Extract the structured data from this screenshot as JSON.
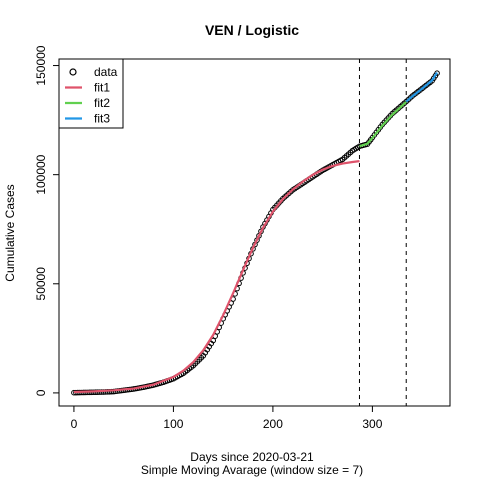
{
  "chart_data": {
    "type": "line",
    "title": "VEN / Logistic",
    "xlabel": "Days since 2020-03-21",
    "xlabel_sub": "Simple Moving Avarage (window size = 7)",
    "ylabel": "Cumulative Cases",
    "xlim": [
      -15,
      378
    ],
    "ylim": [
      -6000,
      153000
    ],
    "xticks": [
      0,
      100,
      200,
      300
    ],
    "yticks": [
      0,
      50000,
      100000,
      150000
    ],
    "xtick_labels": [
      "0",
      "100",
      "200",
      "300"
    ],
    "ytick_labels": [
      "0",
      "50000",
      "100000",
      "150000"
    ],
    "vlines": [
      287,
      334
    ],
    "grid": false,
    "legend_position": "top-left",
    "legend": [
      {
        "label": "data",
        "kind": "point",
        "color": "#000000"
      },
      {
        "label": "fit1",
        "kind": "line",
        "color": "#DF536B"
      },
      {
        "label": "fit2",
        "kind": "line",
        "color": "#61D04F"
      },
      {
        "label": "fit3",
        "kind": "line",
        "color": "#2297E6"
      }
    ],
    "data_points": {
      "x": [
        0,
        10,
        20,
        30,
        40,
        50,
        60,
        70,
        80,
        90,
        100,
        110,
        120,
        130,
        140,
        150,
        160,
        170,
        180,
        190,
        200,
        210,
        220,
        230,
        240,
        250,
        260,
        270,
        280,
        287,
        295,
        300,
        310,
        320,
        334,
        340,
        350,
        360,
        365
      ],
      "y": [
        100,
        200,
        300,
        400,
        600,
        1200,
        1800,
        2600,
        3600,
        4900,
        6500,
        9000,
        12500,
        17000,
        24000,
        34000,
        43000,
        55000,
        66000,
        76000,
        84000,
        89000,
        93000,
        96000,
        99000,
        102000,
        104500,
        107000,
        111000,
        113000,
        114000,
        117000,
        123000,
        128000,
        133500,
        136000,
        139500,
        143000,
        146500
      ]
    },
    "series": [
      {
        "name": "fit1",
        "color": "#DF536B",
        "x": [
          0,
          20,
          40,
          60,
          80,
          100,
          110,
          120,
          130,
          140,
          150,
          160,
          170,
          180,
          190,
          200,
          210,
          220,
          230,
          240,
          250,
          260,
          270,
          280,
          287
        ],
        "y": [
          400,
          700,
          1200,
          2000,
          3800,
          7300,
          10200,
          14100,
          19500,
          26600,
          35600,
          45700,
          56300,
          66500,
          75600,
          83100,
          88800,
          93200,
          96800,
          99900,
          102300,
          104000,
          105100,
          105800,
          106200
        ]
      },
      {
        "name": "fit2",
        "color": "#61D04F",
        "x": [
          287,
          295,
          300,
          310,
          320,
          334
        ],
        "y": [
          113000,
          114200,
          116800,
          122500,
          127500,
          133300
        ]
      },
      {
        "name": "fit3",
        "color": "#2297E6",
        "x": [
          334,
          340,
          350,
          360,
          365
        ],
        "y": [
          133500,
          135800,
          139400,
          143200,
          146800
        ]
      }
    ]
  }
}
